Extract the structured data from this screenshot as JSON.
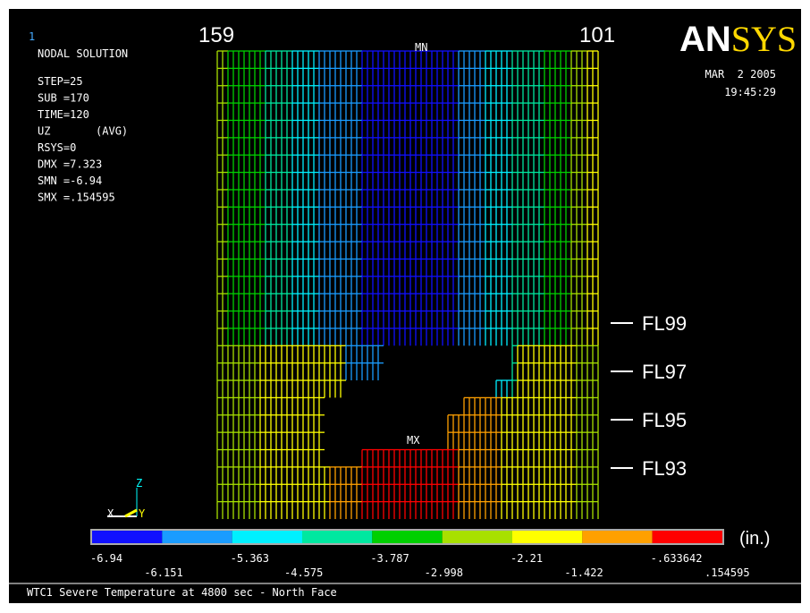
{
  "window_number": "1",
  "header": {
    "title": "NODAL SOLUTION",
    "info": [
      "STEP=25",
      "SUB =170",
      "TIME=120",
      "UZ       (AVG)",
      "RSYS=0",
      "DMX =7.323",
      "SMN =-6.94",
      "SMX =.154595"
    ]
  },
  "column_labels": {
    "left": "159",
    "right": "101"
  },
  "logo": {
    "first": "AN",
    "second": "SYS"
  },
  "date": "MAR  2 2005",
  "time": "19:45:29",
  "markers": {
    "min": "MN",
    "max": "MX"
  },
  "floors": [
    "FL99",
    "FL97",
    "FL95",
    "FL93"
  ],
  "triad": {
    "x": "X",
    "y": "Y",
    "z": "Z"
  },
  "legend": {
    "colors": [
      "#1010ff",
      "#1a9cff",
      "#00f0ff",
      "#00e8a0",
      "#00d000",
      "#a8e000",
      "#ffff00",
      "#ffa000",
      "#ff0000"
    ],
    "labels": [
      "-6.94",
      "-6.151",
      "-5.363",
      "-4.575",
      "-3.787",
      "-2.998",
      "-2.21",
      "-1.422",
      "-.633642",
      ".154595"
    ],
    "unit": "(in.)"
  },
  "caption": "WTC1 Severe Temperature at 4800 sec - North Face"
}
